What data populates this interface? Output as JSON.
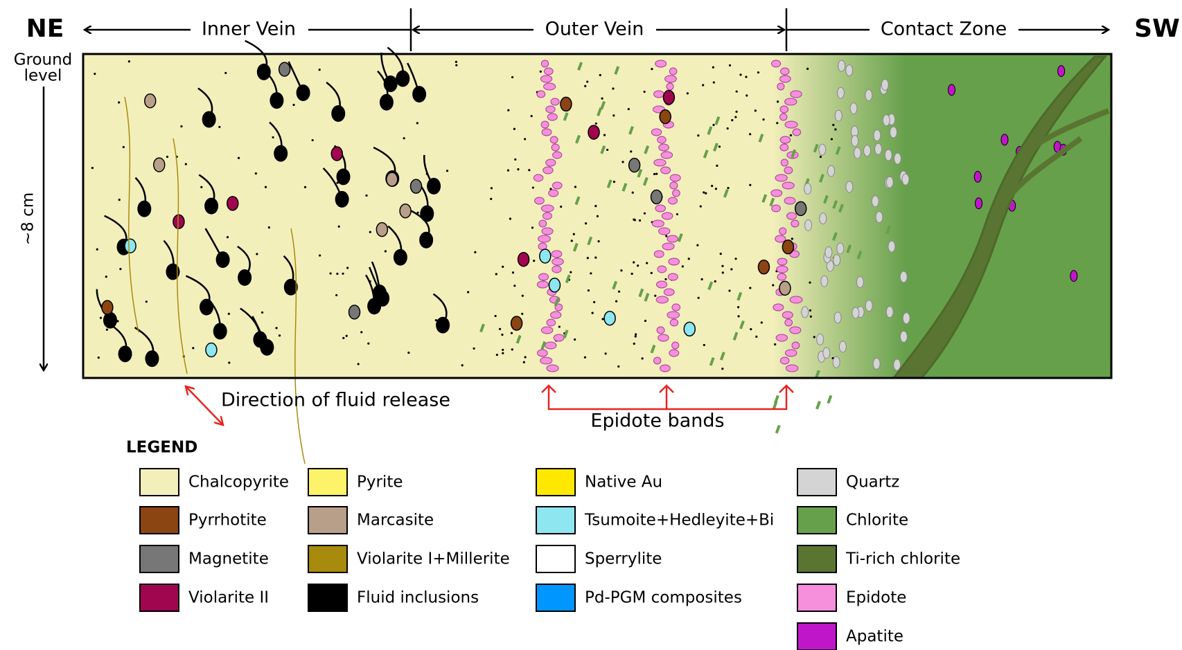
{
  "header": {
    "left": "NE",
    "right": "SW",
    "zones": [
      "Inner Vein",
      "Outer Vein",
      "Contact Zone"
    ]
  },
  "side": {
    "ground": [
      "Ground",
      "level"
    ],
    "depth": "~8 cm"
  },
  "annotations": {
    "fluid": "Direction of fluid release",
    "bands": "Epidote bands"
  },
  "legend": {
    "title": "LEGEND",
    "columns": [
      [
        {
          "label": "Chalcopyrite",
          "color": "#f3efbb"
        },
        {
          "label": "Pyrrhotite",
          "color": "#8b4513"
        },
        {
          "label": "Magnetite",
          "color": "#777777"
        },
        {
          "label": "Violarite II",
          "color": "#a0064f"
        }
      ],
      [
        {
          "label": "Pyrite",
          "color": "#fdf36a"
        },
        {
          "label": "Marcasite",
          "color": "#b89f89"
        },
        {
          "label": "Violarite I+Millerite",
          "color": "#a88a0c"
        },
        {
          "label": "Fluid inclusions",
          "color": "#000000"
        }
      ],
      [
        {
          "label": "Native Au",
          "color": "#ffe800"
        },
        {
          "label": "Tsumoite+Hedleyite+Bi",
          "color": "#8ee6f0"
        },
        {
          "label": "Sperrylite",
          "color": "#ffffff"
        },
        {
          "label": "Pd-PGM composites",
          "color": "#0096ff"
        }
      ],
      [
        {
          "label": "Quartz",
          "color": "#d4d4d4"
        },
        {
          "label": "Chlorite",
          "color": "#66a04b"
        },
        {
          "label": "Ti-rich chlorite",
          "color": "#5a7532"
        },
        {
          "label": "Epidote",
          "color": "#f68fdc"
        },
        {
          "label": "Apatite",
          "color": "#c016c9"
        }
      ]
    ]
  }
}
